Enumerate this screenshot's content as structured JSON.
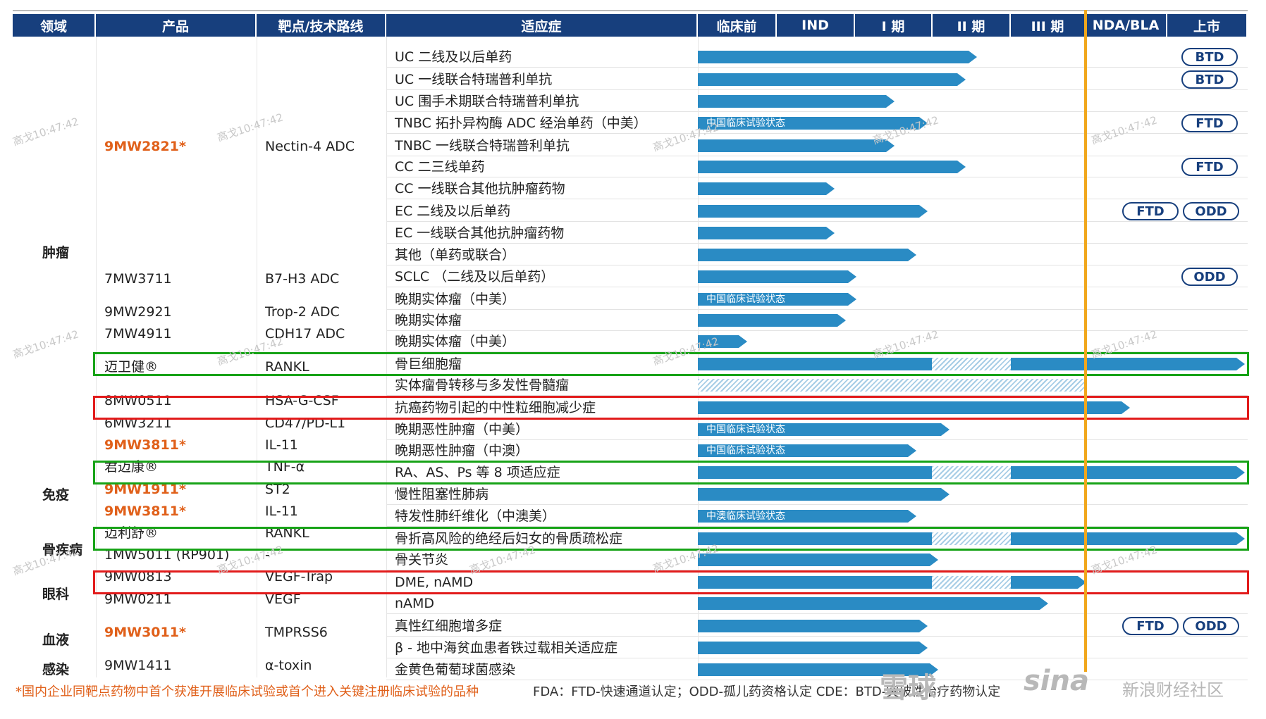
{
  "header": {
    "columns": [
      "领域",
      "产品",
      "靶点/技术路线",
      "适应症"
    ],
    "stages": [
      "临床前",
      "IND",
      "I 期",
      "II 期",
      "III 期",
      "NDA/BLA",
      "上市"
    ]
  },
  "areas": [
    "肿瘤",
    "免疫",
    "骨疾病",
    "眼科",
    "血液",
    "感染"
  ],
  "products": [
    {
      "name": "9MW2821*",
      "target": "Nectin-4 ADC",
      "key": true
    },
    {
      "name": "7MW3711",
      "target": "B7-H3 ADC",
      "key": false
    },
    {
      "name": "9MW2921",
      "target": "Trop-2 ADC",
      "key": false
    },
    {
      "name": "7MW4911",
      "target": "CDH17 ADC",
      "key": false
    },
    {
      "name": "迈卫健®",
      "target": "RANKL",
      "key": false
    },
    {
      "name": "8MW0511",
      "target": "HSA-G-CSF",
      "key": false
    },
    {
      "name": "6MW3211",
      "target": "CD47/PD-L1",
      "key": false
    },
    {
      "name": "9MW3811*",
      "target": "IL-11",
      "key": true
    },
    {
      "name": "君迈康®",
      "target": "TNF-α",
      "key": false
    },
    {
      "name": "9MW1911*",
      "target": "ST2",
      "key": true
    },
    {
      "name": "9MW3811*",
      "target": "IL-11",
      "key": true
    },
    {
      "name": "迈利舒®",
      "target": "RANKL",
      "key": false
    },
    {
      "name": "1MW5011 (RP901)",
      "target": "-",
      "key": false
    },
    {
      "name": "9MW0813",
      "target": "VEGF-Trap",
      "key": false
    },
    {
      "name": "9MW0211",
      "target": "VEGF",
      "key": false
    },
    {
      "name": "9MW3011*",
      "target": "TMPRSS6",
      "key": true
    },
    {
      "name": "9MW1411",
      "target": "α-toxin",
      "key": false
    }
  ],
  "indications": [
    {
      "text": "UC 二线及以后单药",
      "progress": 0.51,
      "badges": [
        "BTD"
      ]
    },
    {
      "text": "UC 一线联合特瑞普利单抗",
      "progress": 0.49,
      "badges": [
        "BTD"
      ]
    },
    {
      "text": "UC 围手术期联合特瑞普利单抗",
      "progress": 0.36,
      "badges": []
    },
    {
      "text": "TNBC 拓扑异构酶 ADC 经治单药（中美）",
      "progress": 0.42,
      "badges": [
        "FTD"
      ],
      "bar_label": "中国临床试验状态"
    },
    {
      "text": "TNBC 一线联合特瑞普利单抗",
      "progress": 0.36,
      "badges": []
    },
    {
      "text": "CC 二三线单药",
      "progress": 0.49,
      "badges": [
        "FTD"
      ]
    },
    {
      "text": "CC 一线联合其他抗肿瘤药物",
      "progress": 0.25,
      "badges": []
    },
    {
      "text": "EC 二线及以后单药",
      "progress": 0.42,
      "badges": [
        "FTD",
        "ODD"
      ]
    },
    {
      "text": "EC 一线联合其他抗肿瘤药物",
      "progress": 0.25,
      "badges": []
    },
    {
      "text": "其他（单药或联合）",
      "progress": 0.4,
      "badges": []
    },
    {
      "text": "SCLC （二线及以后单药）",
      "progress": 0.29,
      "badges": [
        "ODD"
      ]
    },
    {
      "text": "晚期实体瘤（中美）",
      "progress": 0.29,
      "badges": [],
      "bar_label": "中国临床试验状态"
    },
    {
      "text": "晚期实体瘤",
      "progress": 0.27,
      "badges": []
    },
    {
      "text": "晚期实体瘤（中美）",
      "progress": 0.09,
      "badges": []
    },
    {
      "text": "骨巨细胞瘤",
      "progress": 1.0,
      "badges": [],
      "hatched": true
    },
    {
      "text": "实体瘤骨转移与多发性骨髓瘤",
      "progress": 0.71,
      "badges": [],
      "hatched_only": true
    },
    {
      "text": "抗癌药物引起的中性粒细胞减少症",
      "progress": 0.79,
      "badges": []
    },
    {
      "text": "晚期恶性肿瘤（中美）",
      "progress": 0.46,
      "badges": [],
      "bar_label": "中国临床试验状态"
    },
    {
      "text": "晚期恶性肿瘤（中澳）",
      "progress": 0.4,
      "badges": [],
      "bar_label": "中国临床试验状态"
    },
    {
      "text": "RA、AS、Ps 等 8 项适应症",
      "progress": 1.0,
      "badges": [],
      "hatched": true
    },
    {
      "text": "慢性阻塞性肺病",
      "progress": 0.46,
      "badges": []
    },
    {
      "text": "特发性肺纤维化（中澳美）",
      "progress": 0.4,
      "badges": [],
      "bar_label": "中澳临床试验状态"
    },
    {
      "text": "骨折高风险的绝经后妇女的骨质疏松症",
      "progress": 1.0,
      "badges": [],
      "hatched": true
    },
    {
      "text": "骨关节炎",
      "progress": 0.44,
      "badges": []
    },
    {
      "text": "DME, nAMD",
      "progress": 0.71,
      "badges": [],
      "hatched": true
    },
    {
      "text": "nAMD",
      "progress": 0.64,
      "badges": []
    },
    {
      "text": "真性红细胞增多症",
      "progress": 0.42,
      "badges": [
        "FTD",
        "ODD"
      ]
    },
    {
      "text": "β - 地中海贫血患者铁过载相关适应症",
      "progress": 0.42,
      "badges": []
    },
    {
      "text": "金黄色葡萄球菌感染",
      "progress": 0.44,
      "badges": []
    }
  ],
  "footnotes": {
    "key_products": "*国内企业同靶点药物中首个获准开展临床试验或首个进入关键注册临床试验的品种",
    "legend": "FDA：FTD-快速通道认定；ODD-孤儿药资格认定    CDE：BTD-突破性治疗药物认定"
  },
  "watermark": "高戈10:47:42",
  "branding": {
    "xueqiu": "雪球",
    "sina": "sina",
    "sub": "新浪财经社区"
  },
  "colors": {
    "header": "#173f7d",
    "bar": "#2a8bc4",
    "key_product": "#e0601a",
    "highlight_green": "#17a317",
    "highlight_red": "#e21b1b",
    "marker_line": "#f1a71c"
  }
}
